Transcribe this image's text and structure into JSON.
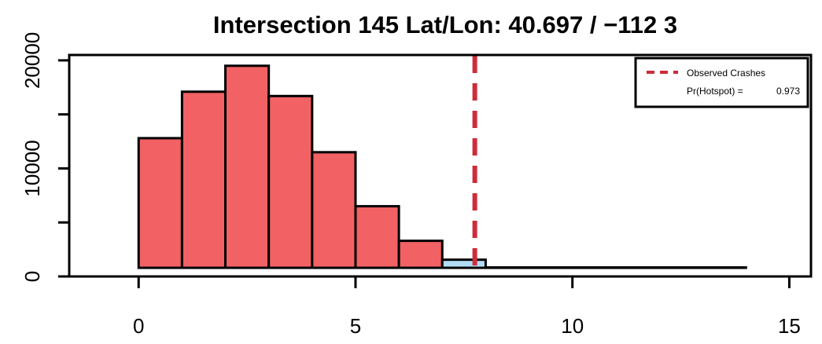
{
  "chart_data": {
    "type": "bar",
    "title": "Intersection 145 Lat/Lon:  40.697 / −112 3",
    "xlabel": "",
    "ylabel": "",
    "xlim": [
      -1.6,
      15.5
    ],
    "ylim": [
      0,
      20500
    ],
    "x_ticks": [
      {
        "value": 0,
        "label": "0"
      },
      {
        "value": 5,
        "label": "5"
      },
      {
        "value": 10,
        "label": "10"
      },
      {
        "value": 15,
        "label": "15"
      }
    ],
    "y_ticks": [
      {
        "value": 0,
        "label": "0"
      },
      {
        "value": 10000,
        "label": "10000"
      },
      {
        "value": 20000,
        "label": "20000"
      }
    ],
    "y_minor_ticks": [
      5000,
      15000
    ],
    "bins": [
      {
        "start": 0,
        "end": 1,
        "count": 12800,
        "region": "below"
      },
      {
        "start": 1,
        "end": 2,
        "count": 17100,
        "region": "below"
      },
      {
        "start": 2,
        "end": 3,
        "count": 19500,
        "region": "below"
      },
      {
        "start": 3,
        "end": 4,
        "count": 16700,
        "region": "below"
      },
      {
        "start": 4,
        "end": 5,
        "count": 11500,
        "region": "below"
      },
      {
        "start": 5,
        "end": 6,
        "count": 6500,
        "region": "below"
      },
      {
        "start": 6,
        "end": 7,
        "count": 3300,
        "region": "below"
      },
      {
        "start": 7,
        "end": 8,
        "count": 1550,
        "region": "above"
      },
      {
        "start": 8,
        "end": 9,
        "count": 650,
        "region": "above"
      },
      {
        "start": 9,
        "end": 10,
        "count": 250,
        "region": "above"
      },
      {
        "start": 10,
        "end": 11,
        "count": 100,
        "region": "above"
      },
      {
        "start": 11,
        "end": 12,
        "count": 40,
        "region": "above"
      },
      {
        "start": 12,
        "end": 13,
        "count": 15,
        "region": "above"
      },
      {
        "start": 13,
        "end": 14,
        "count": 5,
        "region": "above"
      }
    ],
    "observed_crashes": 7.75,
    "legend": {
      "position": "top-right",
      "line_label": "Observed Crashes",
      "prob_label": "Pr(Hotspot) =",
      "prob_value": "0.973"
    },
    "colors": {
      "below": "#f26163",
      "above": "#b3dcf5",
      "observed_line": "#cd2c3a",
      "axis": "#000000"
    },
    "grid": false
  }
}
